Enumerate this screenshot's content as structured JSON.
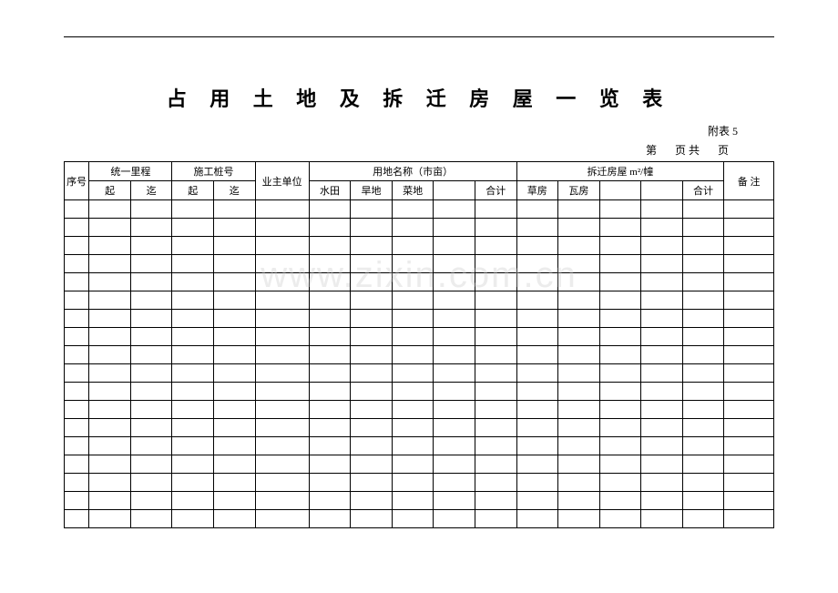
{
  "title": "占 用 土 地 及 拆 迁 房 屋 一 览 表",
  "appendix_label": "附表 5",
  "page_prefix": "第",
  "page_mid": "页 共",
  "page_suffix": "页",
  "headers": {
    "seq": "序号",
    "mileage": "统一里程",
    "mileage_start": "起",
    "mileage_end": "迄",
    "pile": "施工桩号",
    "pile_start": "起",
    "pile_end": "迄",
    "owner": "业主单位",
    "land_group": "用地名称（市亩）",
    "land_paddy": "水田",
    "land_dry": "旱地",
    "land_veg": "菜地",
    "land_blank": "",
    "land_total": "合计",
    "house_group": "拆迁房屋 m²/幢",
    "house_grass": "草房",
    "house_tile": "瓦房",
    "house_blank1": "",
    "house_blank2": "",
    "house_total": "合计",
    "remark": "备  注"
  },
  "num_rows": 18,
  "watermark": "www.zixin.com.cn",
  "styles": {
    "title_fontsize": 22,
    "header_fontsize": 11,
    "border_color": "#000000",
    "background_color": "#ffffff",
    "watermark_color": "rgba(200,200,200,0.35)"
  }
}
